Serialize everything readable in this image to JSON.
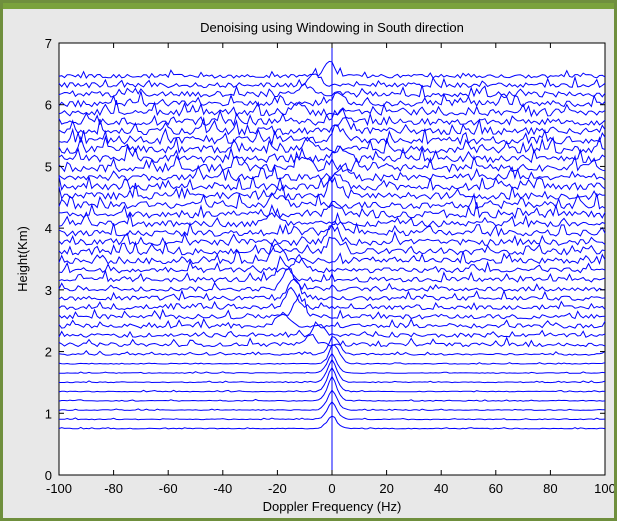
{
  "chart_data": {
    "type": "line",
    "title": "Denoising using Windowing in South direction",
    "xlabel": "Doppler Frequency (Hz)",
    "ylabel": "Height(Km)",
    "xlim": [
      -100,
      100
    ],
    "ylim": [
      0,
      7
    ],
    "xticks": [
      "-100",
      "-80",
      "-60",
      "-40",
      "-20",
      "0",
      "20",
      "40",
      "60",
      "80",
      "100"
    ],
    "yticks": [
      "0",
      "1",
      "2",
      "3",
      "4",
      "5",
      "6",
      "7"
    ],
    "grid": false,
    "series_color": "#0000ff",
    "reference_line_x": 0,
    "baseline_heights_km": [
      0.75,
      0.9,
      1.05,
      1.2,
      1.35,
      1.5,
      1.65,
      1.8,
      1.95,
      2.1,
      2.25,
      2.4,
      2.55,
      2.7,
      2.85,
      3.0,
      3.15,
      3.3,
      3.45,
      3.6,
      3.75,
      3.9,
      4.05,
      4.2,
      4.35,
      4.5,
      4.65,
      4.8,
      4.95,
      5.1,
      5.25,
      5.4,
      5.55,
      5.7,
      5.85,
      6.0,
      6.15,
      6.3,
      6.45
    ],
    "peak_frequency_hz": [
      0,
      0,
      0,
      0,
      0,
      0,
      0,
      1,
      1,
      -8,
      -5,
      -18,
      -12,
      -15,
      -14,
      -16,
      -18,
      -12,
      -20,
      1,
      0,
      2,
      -22,
      1,
      -20,
      1,
      2,
      4,
      -10,
      3,
      -8,
      2,
      4,
      3,
      -12,
      2,
      -10,
      -6,
      -1
    ],
    "peak_amplitude_km": [
      0.16,
      0.22,
      0.25,
      0.3,
      0.3,
      0.28,
      0.24,
      0.26,
      0.24,
      0.16,
      0.18,
      0.22,
      0.3,
      0.3,
      0.32,
      0.34,
      0.28,
      0.22,
      0.25,
      0.25,
      0.24,
      0.2,
      0.2,
      0.22,
      0.24,
      0.2,
      0.2,
      0.2,
      0.18,
      0.18,
      0.18,
      0.2,
      0.2,
      0.18,
      0.18,
      0.16,
      0.16,
      0.18,
      0.2
    ],
    "noise_amplitude_km": [
      0.012,
      0.012,
      0.012,
      0.012,
      0.012,
      0.012,
      0.012,
      0.012,
      0.03,
      0.06,
      0.06,
      0.07,
      0.07,
      0.06,
      0.07,
      0.07,
      0.08,
      0.08,
      0.09,
      0.1,
      0.1,
      0.1,
      0.1,
      0.11,
      0.11,
      0.11,
      0.11,
      0.11,
      0.12,
      0.12,
      0.12,
      0.12,
      0.11,
      0.11,
      0.11,
      0.1,
      0.09,
      0.08,
      0.06
    ]
  }
}
